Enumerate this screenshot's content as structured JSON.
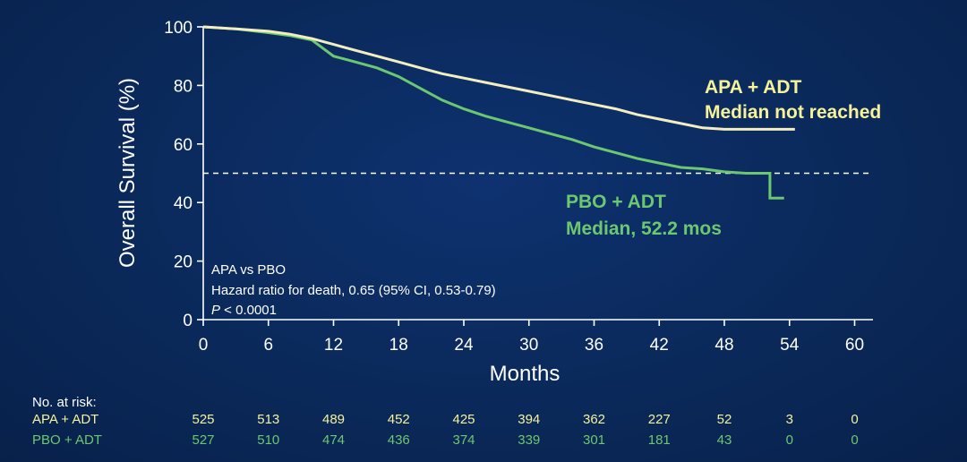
{
  "colors": {
    "background": "#0b2a5c",
    "axis": "#ffffff",
    "apa": "#f2eec0",
    "pbo": "#6cc870",
    "apa_label": "#f6f29a",
    "pbo_label": "#6cc870",
    "reference": "#ffffff"
  },
  "chart_data": {
    "type": "line",
    "title": "",
    "xlabel": "Months",
    "ylabel": "Overall Survival (%)",
    "xlim": [
      0,
      60
    ],
    "ylim": [
      0,
      100
    ],
    "xticks": [
      0,
      6,
      12,
      18,
      24,
      30,
      36,
      42,
      48,
      54,
      60
    ],
    "yticks": [
      0,
      20,
      40,
      60,
      80,
      100
    ],
    "xtick_labels": [
      "0",
      "6",
      "12",
      "18",
      "24",
      "30",
      "36",
      "42",
      "48",
      "54",
      "60"
    ],
    "ytick_labels": [
      "0",
      "20",
      "40",
      "60",
      "80",
      "100"
    ],
    "reference_line": {
      "y": 50,
      "style": "dashed"
    },
    "series": [
      {
        "name": "APA + ADT",
        "label_lines": [
          "APA + ADT",
          "Median not reached"
        ],
        "x": [
          0,
          3,
          6,
          8,
          10,
          12,
          14,
          16,
          18,
          20,
          22,
          24,
          26,
          28,
          30,
          32,
          34,
          36,
          38,
          40,
          42,
          44,
          46,
          48,
          50,
          52,
          54.5
        ],
        "y": [
          100,
          99.3,
          98.5,
          97.5,
          96,
          94,
          92,
          90,
          88,
          86,
          84,
          82.5,
          81,
          79.5,
          78,
          76.5,
          75,
          73.5,
          72,
          70,
          68.5,
          67,
          65.5,
          65,
          65,
          65,
          65
        ]
      },
      {
        "name": "PBO + ADT",
        "label_lines": [
          "PBO + ADT",
          "Median, 52.2 mos"
        ],
        "x": [
          0,
          3,
          6,
          8,
          10,
          12,
          14,
          16,
          18,
          20,
          22,
          24,
          26,
          28,
          30,
          32,
          34,
          36,
          38,
          40,
          42,
          44,
          46,
          48,
          50,
          52.2,
          52.2,
          53.5
        ],
        "y": [
          100,
          99.3,
          98,
          97,
          95.5,
          90,
          88,
          86,
          83,
          79,
          75,
          72,
          69.5,
          67.5,
          65.5,
          63.5,
          61.5,
          59,
          57,
          55,
          53.5,
          52,
          51.5,
          50.5,
          50,
          50,
          41.5,
          41.5
        ]
      }
    ]
  },
  "stats": {
    "line1": "APA vs PBO",
    "line2": "Hazard ratio for death, 0.65 (95% CI, 0.53-0.79)",
    "line3_italic": "P",
    "line3_rest": " < 0.0001"
  },
  "risk_table": {
    "header": "No. at risk:",
    "rows": [
      {
        "label": "APA + ADT",
        "values": [
          "525",
          "513",
          "489",
          "452",
          "425",
          "394",
          "362",
          "227",
          "52",
          "3",
          "0"
        ]
      },
      {
        "label": "PBO + ADT",
        "values": [
          "527",
          "510",
          "474",
          "436",
          "374",
          "339",
          "301",
          "181",
          "43",
          "0",
          "0"
        ]
      }
    ]
  }
}
